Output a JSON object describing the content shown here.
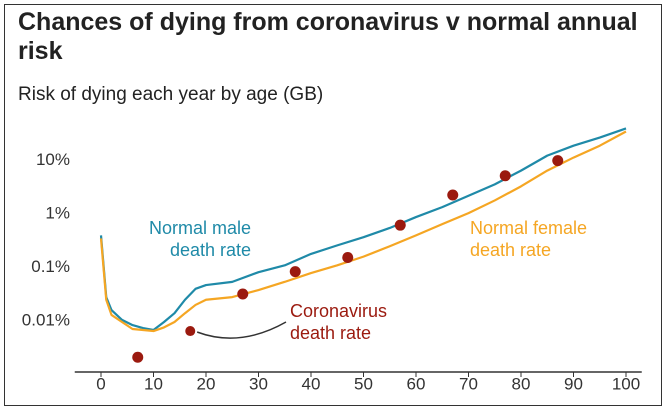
{
  "chart_data": {
    "type": "line",
    "title": "Chances of dying from coronavirus v normal annual risk",
    "subtitle": "Risk of dying each year by age (GB)",
    "log_scale": true,
    "grid": false,
    "xlim": [
      -5,
      103
    ],
    "xticks": [
      0,
      10,
      20,
      30,
      40,
      50,
      60,
      70,
      80,
      90,
      100
    ],
    "ylim": [
      0.001,
      60
    ],
    "yticks": [
      {
        "value": 0.01,
        "label": "0.01%"
      },
      {
        "value": 0.1,
        "label": "0.1%"
      },
      {
        "value": 1,
        "label": "1%"
      },
      {
        "value": 10,
        "label": "10%"
      }
    ],
    "series": [
      {
        "name": "Normal male death rate",
        "label": [
          "Normal male",
          "death rate"
        ],
        "type": "line",
        "color": "#1f8aa8",
        "x": [
          0,
          1,
          2,
          4,
          6,
          8,
          10,
          12,
          14,
          16,
          18,
          20,
          25,
          30,
          35,
          40,
          45,
          50,
          55,
          60,
          65,
          70,
          75,
          80,
          85,
          90,
          95,
          100
        ],
        "values": [
          0.4,
          0.028,
          0.016,
          0.0105,
          0.0084,
          0.0074,
          0.0068,
          0.0096,
          0.014,
          0.025,
          0.04,
          0.047,
          0.054,
          0.082,
          0.11,
          0.18,
          0.26,
          0.37,
          0.55,
          0.88,
          1.35,
          2.2,
          3.6,
          6.5,
          12.4,
          19,
          27,
          40
        ]
      },
      {
        "name": "Normal female death rate",
        "label": [
          "Normal female",
          "death rate"
        ],
        "type": "line",
        "color": "#f5a623",
        "x": [
          0,
          1,
          2,
          4,
          6,
          8,
          10,
          12,
          14,
          16,
          18,
          20,
          25,
          30,
          35,
          40,
          45,
          50,
          55,
          60,
          65,
          70,
          75,
          80,
          85,
          90,
          95,
          100
        ],
        "values": [
          0.35,
          0.025,
          0.013,
          0.0096,
          0.0071,
          0.0068,
          0.0065,
          0.0076,
          0.0096,
          0.014,
          0.02,
          0.025,
          0.028,
          0.038,
          0.054,
          0.079,
          0.11,
          0.16,
          0.25,
          0.4,
          0.65,
          1.04,
          1.8,
          3.3,
          6.5,
          11.4,
          19,
          35
        ]
      },
      {
        "name": "Coronavirus death rate",
        "label": [
          "Coronavirus",
          "death rate"
        ],
        "type": "scatter",
        "color": "#9b1a0f",
        "x": [
          7,
          17,
          27,
          37,
          47,
          57,
          67,
          77,
          87
        ],
        "values": [
          0.0021,
          0.0065,
          0.032,
          0.084,
          0.154,
          0.62,
          2.27,
          5.2,
          10
        ]
      }
    ]
  }
}
